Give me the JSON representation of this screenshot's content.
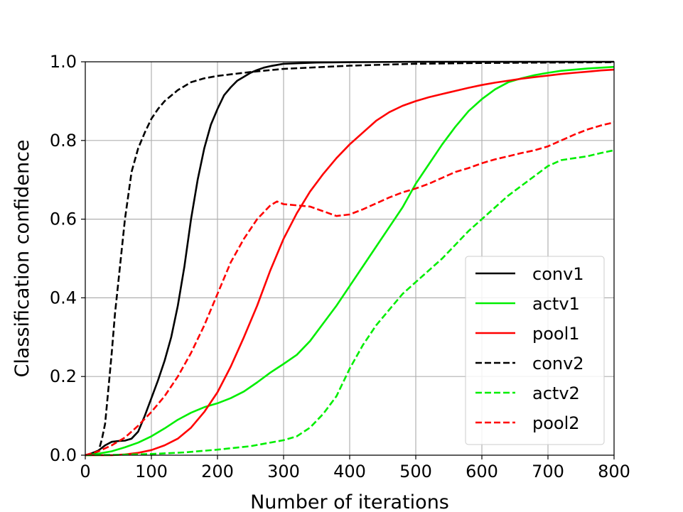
{
  "chart_data": {
    "type": "line",
    "title": "",
    "xlabel": "Number of iterations",
    "ylabel": "Classification confidence",
    "xlim": [
      0,
      800
    ],
    "ylim": [
      0,
      1.0
    ],
    "xticks": [
      0,
      100,
      200,
      300,
      400,
      500,
      600,
      700,
      800
    ],
    "yticks": [
      0.0,
      0.2,
      0.4,
      0.6,
      0.8,
      1.0
    ],
    "xtick_labels": [
      "0",
      "100",
      "200",
      "300",
      "400",
      "500",
      "600",
      "700",
      "800"
    ],
    "ytick_labels": [
      "0.0",
      "0.2",
      "0.4",
      "0.6",
      "0.8",
      "1.0"
    ],
    "grid": true,
    "legend_position": "lower-right",
    "series": [
      {
        "name": "conv1",
        "color": "#000000",
        "style": "solid",
        "x": [
          0,
          10,
          20,
          30,
          40,
          50,
          60,
          70,
          80,
          90,
          100,
          110,
          120,
          130,
          140,
          150,
          160,
          170,
          180,
          190,
          200,
          210,
          220,
          230,
          240,
          250,
          260,
          270,
          280,
          300,
          350,
          400,
          500,
          600,
          700,
          800
        ],
        "y": [
          0.0,
          0.005,
          0.012,
          0.025,
          0.034,
          0.036,
          0.037,
          0.042,
          0.06,
          0.1,
          0.145,
          0.19,
          0.24,
          0.3,
          0.38,
          0.48,
          0.6,
          0.7,
          0.78,
          0.84,
          0.88,
          0.915,
          0.935,
          0.952,
          0.962,
          0.972,
          0.979,
          0.985,
          0.989,
          0.995,
          0.998,
          0.999,
          1.0,
          1.0,
          1.0,
          1.0
        ]
      },
      {
        "name": "actv1",
        "color": "#00ee00",
        "style": "solid",
        "x": [
          0,
          20,
          40,
          60,
          80,
          100,
          120,
          140,
          160,
          180,
          200,
          220,
          240,
          260,
          280,
          300,
          320,
          340,
          360,
          380,
          400,
          420,
          440,
          460,
          480,
          500,
          520,
          540,
          560,
          580,
          600,
          620,
          640,
          660,
          680,
          700,
          720,
          740,
          760,
          780,
          800
        ],
        "y": [
          0.0,
          0.004,
          0.01,
          0.02,
          0.032,
          0.048,
          0.068,
          0.09,
          0.108,
          0.122,
          0.132,
          0.145,
          0.162,
          0.185,
          0.21,
          0.232,
          0.255,
          0.29,
          0.335,
          0.38,
          0.43,
          0.48,
          0.53,
          0.58,
          0.63,
          0.69,
          0.74,
          0.79,
          0.835,
          0.875,
          0.905,
          0.93,
          0.948,
          0.958,
          0.966,
          0.972,
          0.977,
          0.98,
          0.983,
          0.985,
          0.987
        ]
      },
      {
        "name": "pool1",
        "color": "#ff0000",
        "style": "solid",
        "x": [
          0,
          40,
          60,
          80,
          100,
          120,
          140,
          160,
          180,
          200,
          220,
          240,
          260,
          280,
          300,
          320,
          340,
          360,
          380,
          400,
          420,
          440,
          460,
          480,
          500,
          520,
          540,
          560,
          580,
          600,
          620,
          640,
          660,
          680,
          700,
          720,
          740,
          760,
          780,
          800
        ],
        "y": [
          0.0,
          0.0,
          0.002,
          0.006,
          0.013,
          0.025,
          0.042,
          0.07,
          0.11,
          0.16,
          0.225,
          0.3,
          0.38,
          0.47,
          0.55,
          0.615,
          0.67,
          0.715,
          0.755,
          0.79,
          0.82,
          0.85,
          0.872,
          0.888,
          0.9,
          0.91,
          0.918,
          0.926,
          0.934,
          0.941,
          0.947,
          0.952,
          0.957,
          0.961,
          0.965,
          0.969,
          0.972,
          0.975,
          0.978,
          0.98
        ]
      },
      {
        "name": "conv2",
        "color": "#000000",
        "style": "dashed",
        "x": [
          0,
          10,
          20,
          25,
          30,
          35,
          40,
          45,
          50,
          60,
          70,
          80,
          90,
          100,
          110,
          120,
          140,
          160,
          180,
          200,
          220,
          250,
          300,
          400,
          500,
          600,
          700,
          800
        ],
        "y": [
          0.0,
          0.004,
          0.01,
          0.04,
          0.08,
          0.17,
          0.26,
          0.36,
          0.44,
          0.6,
          0.72,
          0.78,
          0.82,
          0.855,
          0.88,
          0.9,
          0.928,
          0.948,
          0.958,
          0.964,
          0.968,
          0.974,
          0.982,
          0.99,
          0.995,
          0.997,
          0.998,
          0.999
        ]
      },
      {
        "name": "actv2",
        "color": "#00ee00",
        "style": "dashed",
        "x": [
          0,
          50,
          100,
          150,
          200,
          250,
          300,
          320,
          340,
          360,
          380,
          400,
          420,
          440,
          460,
          480,
          500,
          520,
          540,
          560,
          580,
          600,
          620,
          640,
          660,
          680,
          700,
          720,
          740,
          760,
          780,
          800
        ],
        "y": [
          0.0,
          0.001,
          0.003,
          0.007,
          0.014,
          0.023,
          0.038,
          0.048,
          0.07,
          0.105,
          0.15,
          0.22,
          0.28,
          0.33,
          0.37,
          0.41,
          0.44,
          0.47,
          0.5,
          0.535,
          0.57,
          0.6,
          0.63,
          0.66,
          0.685,
          0.71,
          0.735,
          0.75,
          0.755,
          0.76,
          0.768,
          0.775
        ]
      },
      {
        "name": "pool2",
        "color": "#ff0000",
        "style": "dashed",
        "x": [
          0,
          20,
          40,
          60,
          80,
          100,
          120,
          140,
          160,
          180,
          200,
          220,
          240,
          260,
          280,
          290,
          300,
          320,
          340,
          360,
          380,
          400,
          420,
          440,
          460,
          480,
          500,
          520,
          540,
          560,
          580,
          600,
          620,
          640,
          660,
          680,
          700,
          720,
          740,
          760,
          780,
          800
        ],
        "y": [
          0.0,
          0.01,
          0.025,
          0.045,
          0.075,
          0.11,
          0.15,
          0.2,
          0.26,
          0.33,
          0.41,
          0.49,
          0.55,
          0.6,
          0.635,
          0.645,
          0.638,
          0.635,
          0.632,
          0.62,
          0.608,
          0.612,
          0.625,
          0.64,
          0.655,
          0.668,
          0.678,
          0.69,
          0.705,
          0.72,
          0.73,
          0.742,
          0.752,
          0.76,
          0.768,
          0.775,
          0.785,
          0.8,
          0.815,
          0.828,
          0.838,
          0.846
        ]
      }
    ]
  }
}
